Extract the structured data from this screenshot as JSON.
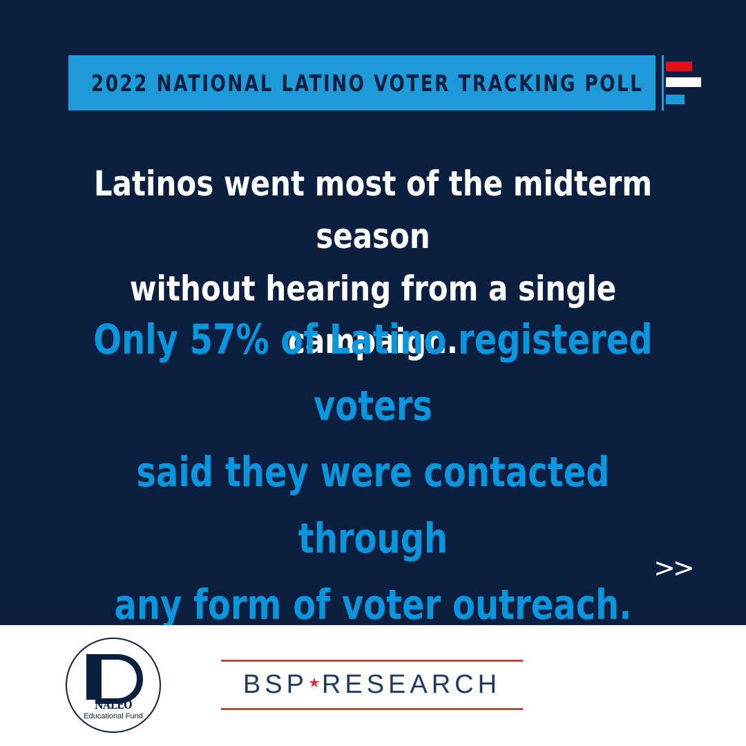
{
  "banner": {
    "title": "2022 NATIONAL LATINO VOTER TRACKING POLL"
  },
  "headline": {
    "line1": "Latinos went most of the midterm season",
    "line2": "without hearing from a single campaign."
  },
  "stat": {
    "line1": "Only 57% of Latino registered voters",
    "line2": "said they were contacted through",
    "line3": "any form of voter outreach."
  },
  "nav": {
    "next_label": ">>"
  },
  "footer": {
    "naleo": {
      "name": "NALEO",
      "subtitle": "Educational Fund"
    },
    "bsp": {
      "left": "BSP",
      "star": "★",
      "right": "RESEARCH"
    }
  },
  "colors": {
    "background": "#0b1f40",
    "accent_blue": "#1e9ad9",
    "stat_blue": "#0a95dd",
    "flag_red": "#e3101a",
    "flag_white": "#ffffff",
    "bsp_red": "#d9393e",
    "bsp_navy": "#1f3b64"
  },
  "icons": {
    "flag": "flag-stripes-icon",
    "next": "double-chevron-right-icon"
  }
}
